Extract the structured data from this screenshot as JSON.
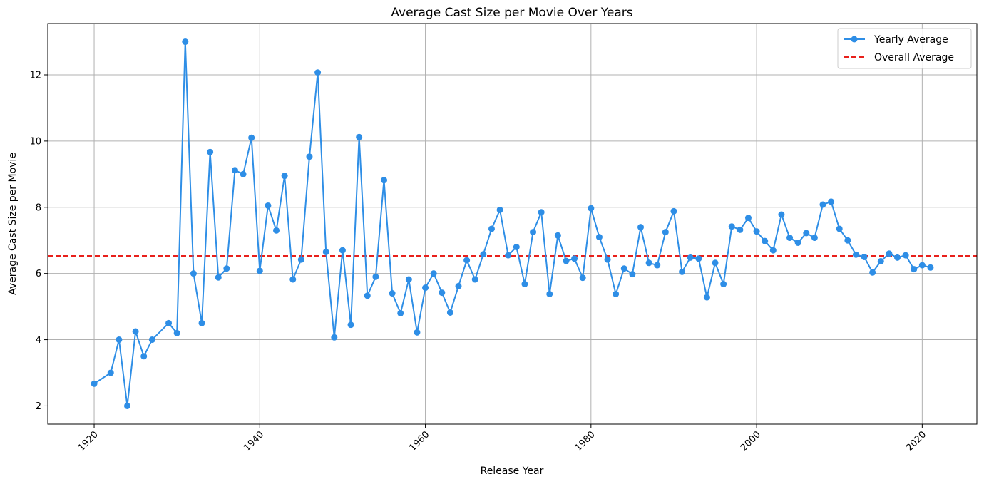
{
  "chart_data": {
    "type": "line",
    "title": "Average Cast Size per Movie Over Years",
    "xlabel": "Release Year",
    "ylabel": "Average Cast Size per Movie",
    "xlim": [
      1914.4,
      2026.6
    ],
    "ylim": [
      1.45,
      13.55
    ],
    "xticks": [
      1920,
      1940,
      1960,
      1980,
      2000,
      2020
    ],
    "yticks": [
      2,
      4,
      6,
      8,
      10,
      12
    ],
    "grid": true,
    "legend_position": "top-right",
    "series": [
      {
        "name": "Yearly Average",
        "color": "#2e8ee6",
        "marker": "circle",
        "x": [
          1920,
          1922,
          1923,
          1924,
          1925,
          1926,
          1927,
          1929,
          1930,
          1931,
          1932,
          1933,
          1934,
          1935,
          1936,
          1937,
          1938,
          1939,
          1940,
          1941,
          1942,
          1943,
          1944,
          1945,
          1946,
          1947,
          1948,
          1949,
          1950,
          1951,
          1952,
          1953,
          1954,
          1955,
          1956,
          1957,
          1958,
          1959,
          1960,
          1961,
          1962,
          1963,
          1964,
          1965,
          1966,
          1967,
          1968,
          1969,
          1970,
          1971,
          1972,
          1973,
          1974,
          1975,
          1976,
          1977,
          1978,
          1979,
          1980,
          1981,
          1982,
          1983,
          1984,
          1985,
          1986,
          1987,
          1988,
          1989,
          1990,
          1991,
          1992,
          1993,
          1994,
          1995,
          1996,
          1997,
          1998,
          1999,
          2000,
          2001,
          2002,
          2003,
          2004,
          2005,
          2006,
          2007,
          2008,
          2009,
          2010,
          2011,
          2012,
          2013,
          2014,
          2015,
          2016,
          2017,
          2018,
          2019,
          2020,
          2021
        ],
        "y": [
          2.67,
          3.0,
          4.0,
          2.0,
          4.25,
          3.5,
          4.0,
          4.5,
          4.2,
          13.0,
          6.0,
          4.5,
          9.67,
          5.88,
          6.15,
          9.12,
          9.0,
          10.1,
          6.08,
          8.05,
          7.3,
          8.95,
          5.82,
          6.42,
          9.53,
          12.07,
          6.65,
          4.07,
          6.7,
          4.45,
          10.12,
          5.33,
          5.9,
          8.82,
          5.4,
          4.8,
          5.82,
          4.22,
          5.57,
          6.0,
          5.42,
          4.82,
          5.62,
          6.4,
          5.82,
          6.58,
          7.35,
          7.92,
          6.55,
          6.8,
          5.68,
          7.25,
          7.85,
          5.38,
          7.15,
          6.38,
          6.45,
          5.87,
          7.97,
          7.1,
          6.42,
          5.38,
          6.15,
          5.98,
          7.4,
          6.32,
          6.25,
          7.25,
          7.88,
          6.05,
          6.48,
          6.45,
          5.28,
          6.32,
          5.68,
          7.42,
          7.32,
          7.68,
          7.27,
          6.98,
          6.7,
          7.78,
          7.08,
          6.93,
          7.22,
          7.08,
          8.08,
          8.17,
          7.35,
          7.0,
          6.57,
          6.5,
          6.03,
          6.37,
          6.6,
          6.48,
          6.55,
          6.13,
          6.25,
          6.18
        ]
      },
      {
        "name": "Overall Average",
        "color": "#e8201b",
        "style": "dashed",
        "y": 6.53
      }
    ]
  }
}
